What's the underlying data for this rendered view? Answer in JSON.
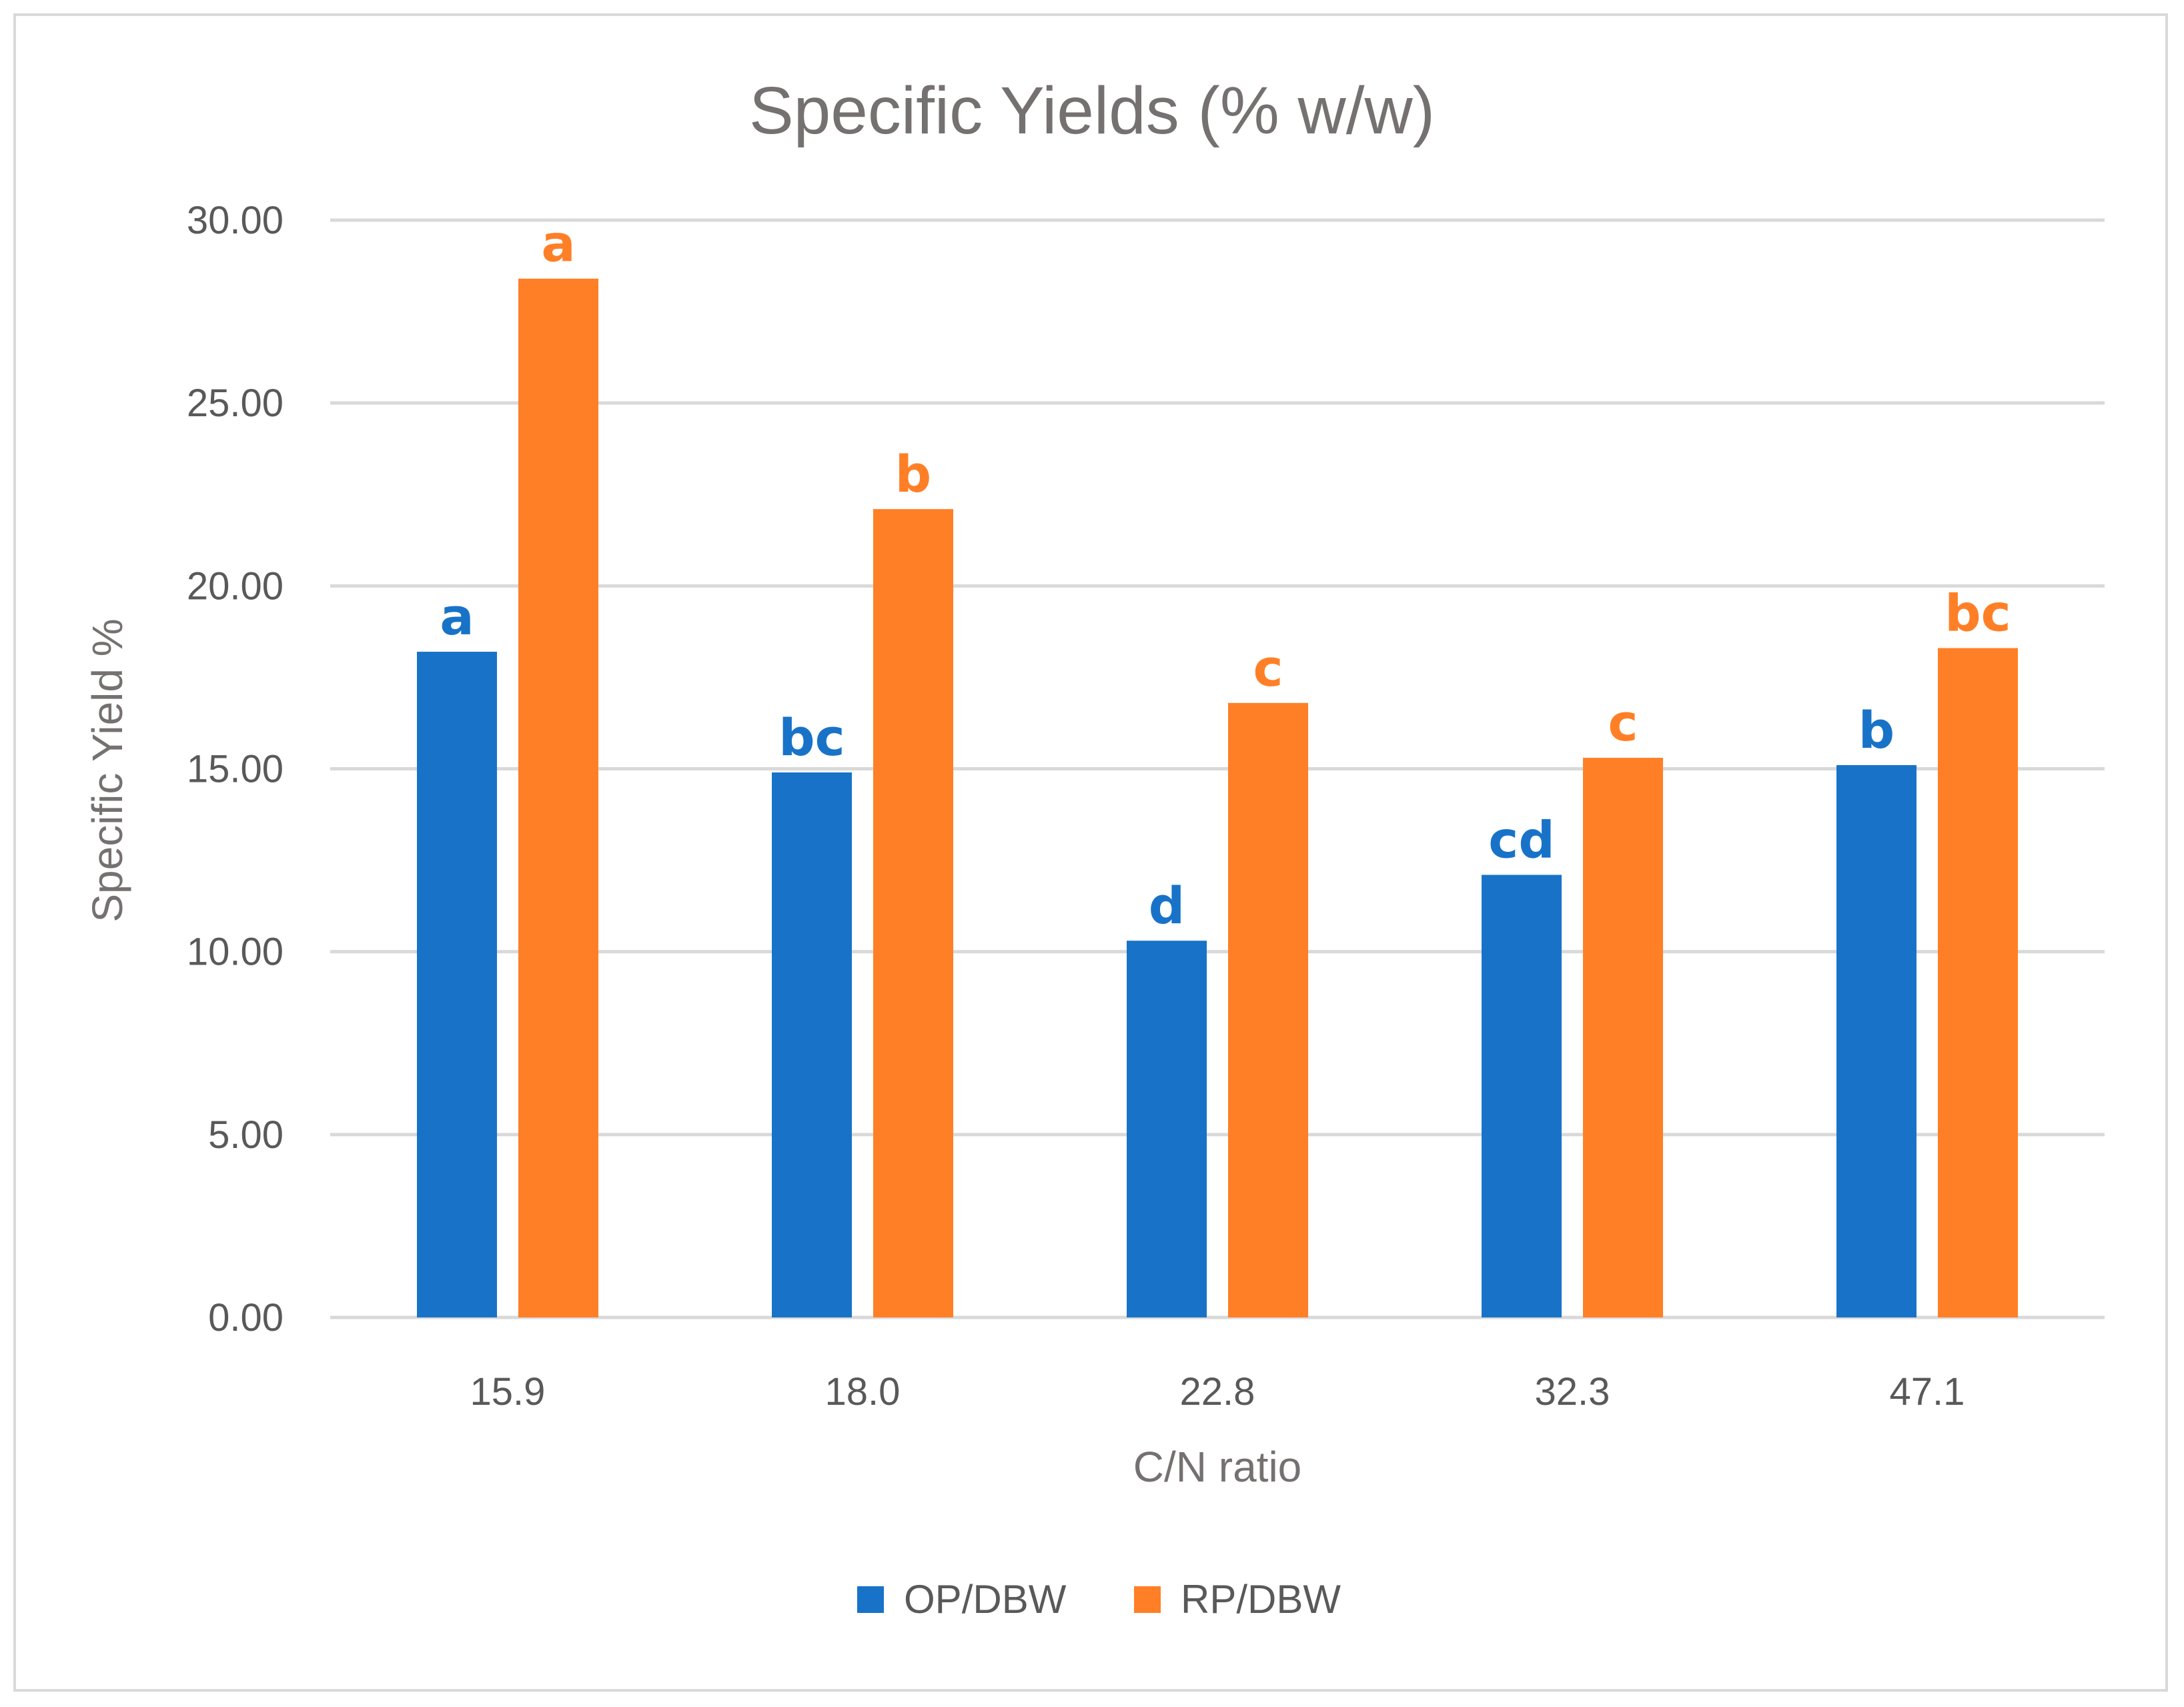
{
  "chart_data": {
    "type": "bar",
    "title": "Specific Yields (% w/w)",
    "xlabel": "C/N ratio",
    "ylabel": "Specific Yield %",
    "ylim": [
      0,
      30
    ],
    "yticks": [
      "0.00",
      "5.00",
      "10.00",
      "15.00",
      "20.00",
      "25.00",
      "30.00"
    ],
    "categories": [
      "15.9",
      "18.0",
      "22.8",
      "32.3",
      "47.1"
    ],
    "series": [
      {
        "name": "OP/DBW",
        "color": "#1873c8",
        "values": [
          18.2,
          14.9,
          10.3,
          12.1,
          15.1
        ],
        "letters": [
          "a",
          "bc",
          "d",
          "cd",
          "b"
        ]
      },
      {
        "name": "RP/DBW",
        "color": "#ff7f27",
        "values": [
          28.4,
          22.1,
          16.8,
          15.3,
          18.3
        ],
        "letters": [
          "a",
          "b",
          "c",
          "c",
          "bc"
        ]
      }
    ],
    "grid": true,
    "legend": "bottom"
  }
}
